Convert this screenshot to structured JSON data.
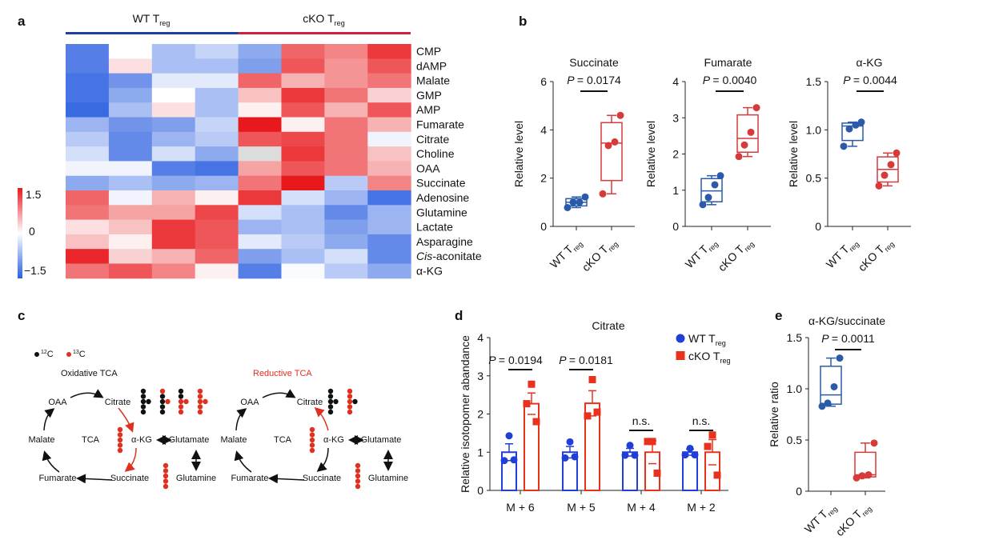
{
  "panel_labels": {
    "a": "a",
    "b": "b",
    "c": "c",
    "d": "d",
    "e": "e"
  },
  "colors": {
    "wt": "#2b5aa8",
    "cko": "#d63a3a",
    "wt_d": "#1f3fd6",
    "cko_d": "#e8321e",
    "heat_low": "#2a5fe0",
    "heat_mid": "#ffffff",
    "heat_high": "#e8191c"
  },
  "chart_data": [
    {
      "panel": "a",
      "type": "heatmap",
      "groups": [
        {
          "label": "WT T",
          "sub": "reg",
          "color": "#1f3fa8"
        },
        {
          "label": "cKO T",
          "sub": "reg",
          "color": "#d02040"
        }
      ],
      "rows": [
        "CMP",
        "dAMP",
        "Malate",
        "GMP",
        "AMP",
        "Fumarate",
        "Citrate",
        "Choline",
        "OAA",
        "Succinate",
        "Adenosine",
        "Glutamine",
        "Lactate",
        "Asparagine",
        "Cis-aconitate",
        "α-KG"
      ],
      "row_label_italic_prefix": {
        "Cis-aconitate": "Cis"
      },
      "values": [
        [
          -1.2,
          0,
          -0.6,
          -0.4,
          -0.8,
          1.0,
          0.8,
          1.3
        ],
        [
          -1.2,
          0.2,
          -0.6,
          -0.6,
          -0.9,
          1.1,
          0.7,
          1.1
        ],
        [
          -1.3,
          -1.0,
          -0.2,
          -0.2,
          1.0,
          0.5,
          0.7,
          0.9
        ],
        [
          -1.3,
          -0.8,
          0,
          -0.6,
          0.4,
          1.3,
          0.9,
          0.3
        ],
        [
          -1.4,
          -0.6,
          0.2,
          -0.6,
          0.1,
          1.1,
          0.5,
          1.1
        ],
        [
          -0.7,
          -1.0,
          -0.9,
          -0.4,
          1.5,
          0.1,
          0.9,
          0.5
        ],
        [
          -0.5,
          -1.1,
          -0.7,
          -0.5,
          1.1,
          1.2,
          0.9,
          -0.1
        ],
        [
          -0.3,
          -1.1,
          -0.3,
          -0.8,
          null,
          1.3,
          0.9,
          0.4
        ],
        [
          -0.1,
          -0.1,
          -1.2,
          -1.3,
          0.6,
          1.1,
          0.9,
          0.5
        ],
        [
          -0.8,
          -0.6,
          -0.8,
          -0.7,
          0.9,
          1.5,
          -0.5,
          0.8
        ],
        [
          1.0,
          -0.1,
          0.5,
          0.1,
          1.3,
          -0.3,
          -0.7,
          -1.3
        ],
        [
          0.9,
          0.6,
          0.6,
          1.2,
          -0.3,
          -0.6,
          -1.1,
          -0.7
        ],
        [
          0.2,
          0.4,
          1.3,
          1.1,
          -0.7,
          -0.6,
          -0.9,
          -0.7
        ],
        [
          0.4,
          0.1,
          1.3,
          1.1,
          -0.2,
          -0.5,
          -0.8,
          -1.1
        ],
        [
          1.4,
          0.3,
          0.5,
          1.0,
          -0.9,
          -0.6,
          -0.3,
          -1.1
        ],
        [
          0.9,
          1.1,
          0.8,
          0.1,
          -1.2,
          -0.05,
          -0.5,
          -0.8
        ]
      ],
      "colorbar": {
        "range": [
          -1.5,
          1.5
        ],
        "ticks": [
          "1.5",
          "0",
          "−1.5"
        ]
      }
    },
    {
      "panel": "b",
      "type": "box",
      "ylabel": "Relative level",
      "categories": [
        "WT T",
        "cKO T"
      ],
      "category_sub": "reg",
      "plots": [
        {
          "title": "Succinate",
          "p": "= 0.0174",
          "ylim": [
            0,
            6
          ],
          "ticks": [
            "0",
            "2",
            "4",
            "6"
          ],
          "tickvals": [
            0,
            2,
            4,
            6
          ],
          "boxes": [
            {
              "points": [
                0.78,
                1.0,
                1.0,
                1.22
              ],
              "q1": 0.85,
              "median": 1.0,
              "q3": 1.15,
              "min": 0.78,
              "max": 1.22
            },
            {
              "points": [
                1.35,
                3.35,
                3.5,
                4.6
              ],
              "q1": 1.9,
              "median": 3.45,
              "q3": 4.3,
              "min": 1.35,
              "max": 4.6
            }
          ]
        },
        {
          "title": "Fumarate",
          "p": "= 0.0040",
          "ylim": [
            0,
            4
          ],
          "ticks": [
            "0",
            "1",
            "2",
            "3",
            "4"
          ],
          "tickvals": [
            0,
            1,
            2,
            3,
            4
          ],
          "boxes": [
            {
              "points": [
                0.6,
                0.8,
                1.15,
                1.4
              ],
              "q1": 0.68,
              "median": 0.98,
              "q3": 1.32,
              "min": 0.6,
              "max": 1.4
            },
            {
              "points": [
                1.93,
                2.25,
                2.6,
                3.28
              ],
              "q1": 2.05,
              "median": 2.43,
              "q3": 3.08,
              "min": 1.93,
              "max": 3.28
            }
          ]
        },
        {
          "title": "α-KG",
          "p": "= 0.0044",
          "ylim": [
            0,
            1.5
          ],
          "ticks": [
            "0",
            "0.5",
            "1.0",
            "1.5"
          ],
          "tickvals": [
            0,
            0.5,
            1.0,
            1.5
          ],
          "boxes": [
            {
              "points": [
                0.83,
                1.01,
                1.05,
                1.08
              ],
              "q1": 0.89,
              "median": 1.04,
              "q3": 1.07,
              "min": 0.83,
              "max": 1.08
            },
            {
              "points": [
                0.42,
                0.53,
                0.64,
                0.76
              ],
              "q1": 0.46,
              "median": 0.59,
              "q3": 0.72,
              "min": 0.42,
              "max": 0.76
            }
          ]
        }
      ]
    },
    {
      "panel": "d",
      "type": "bar",
      "title": "Citrate",
      "ylabel": "Relative isotopomer abandance",
      "ylim": [
        0,
        4
      ],
      "ticks": [
        "0",
        "1",
        "2",
        "3",
        "4"
      ],
      "categories": [
        "M + 6",
        "M + 5",
        "M + 4",
        "M + 2"
      ],
      "legend": {
        "placement": "top-right",
        "entries": [
          {
            "label": "WT T",
            "sub": "reg",
            "marker": "circle"
          },
          {
            "label": "cKO T",
            "sub": "reg",
            "marker": "square"
          }
        ]
      },
      "series": [
        {
          "name": "WT Treg",
          "values": [
            1.0,
            1.0,
            1.0,
            1.0
          ],
          "sem": [
            0.22,
            0.15,
            0.1,
            0.08
          ],
          "points": [
            [
              1.43,
              0.78,
              0.8
            ],
            [
              1.27,
              0.85,
              0.88
            ],
            [
              1.18,
              0.92,
              0.92
            ],
            [
              1.1,
              0.93,
              0.93
            ]
          ]
        },
        {
          "name": "cKO Treg",
          "values": [
            2.27,
            2.28,
            1.0,
            1.0
          ],
          "sem": [
            0.28,
            0.33,
            0.3,
            0.33
          ],
          "points": [
            [
              2.78,
              2.27,
              1.8
            ],
            [
              2.9,
              1.95,
              2.05
            ],
            [
              1.28,
              1.28,
              0.45
            ],
            [
              1.45,
              1.15,
              0.4
            ]
          ]
        }
      ],
      "annotations": [
        "= 0.0194",
        "= 0.0181",
        "n.s.",
        "n.s."
      ],
      "p_prefix": "P"
    },
    {
      "panel": "e",
      "type": "box",
      "title": "α-KG/succinate",
      "p": "= 0.0011",
      "ylabel": "Relative ratio",
      "ylim": [
        0,
        1.5
      ],
      "ticks": [
        "0",
        "0.5",
        "1.0",
        "1.5"
      ],
      "categories": [
        "WT T",
        "cKO T"
      ],
      "category_sub": "reg",
      "boxes": [
        {
          "points": [
            0.83,
            0.86,
            1.02,
            1.3
          ],
          "q1": 0.85,
          "median": 0.94,
          "q3": 1.22,
          "min": 0.83,
          "max": 1.3
        },
        {
          "points": [
            0.13,
            0.15,
            0.16,
            0.47
          ],
          "q1": 0.14,
          "median": 0.16,
          "q3": 0.38,
          "min": 0.13,
          "max": 0.47
        }
      ]
    }
  ],
  "diagram_c": {
    "legend": [
      {
        "sup": "12",
        "label": "C",
        "color": "#111111"
      },
      {
        "sup": "13",
        "label": "C",
        "color": "#e03020"
      }
    ],
    "pathways": [
      {
        "title": "Oxidative TCA",
        "title_color": "#111111",
        "nodes": [
          "OAA",
          "Citrate",
          "Malate",
          "TCA",
          "α-KG",
          "Glutamate",
          "Fumarate",
          "Succinate",
          "Glutamine"
        ]
      },
      {
        "title": "Reductive TCA",
        "title_color": "#e03020",
        "nodes": [
          "OAA",
          "Citrate",
          "Malate",
          "TCA",
          "α-KG",
          "Glutamate",
          "Fumarate",
          "Succinate",
          "Glutamine"
        ]
      }
    ]
  }
}
